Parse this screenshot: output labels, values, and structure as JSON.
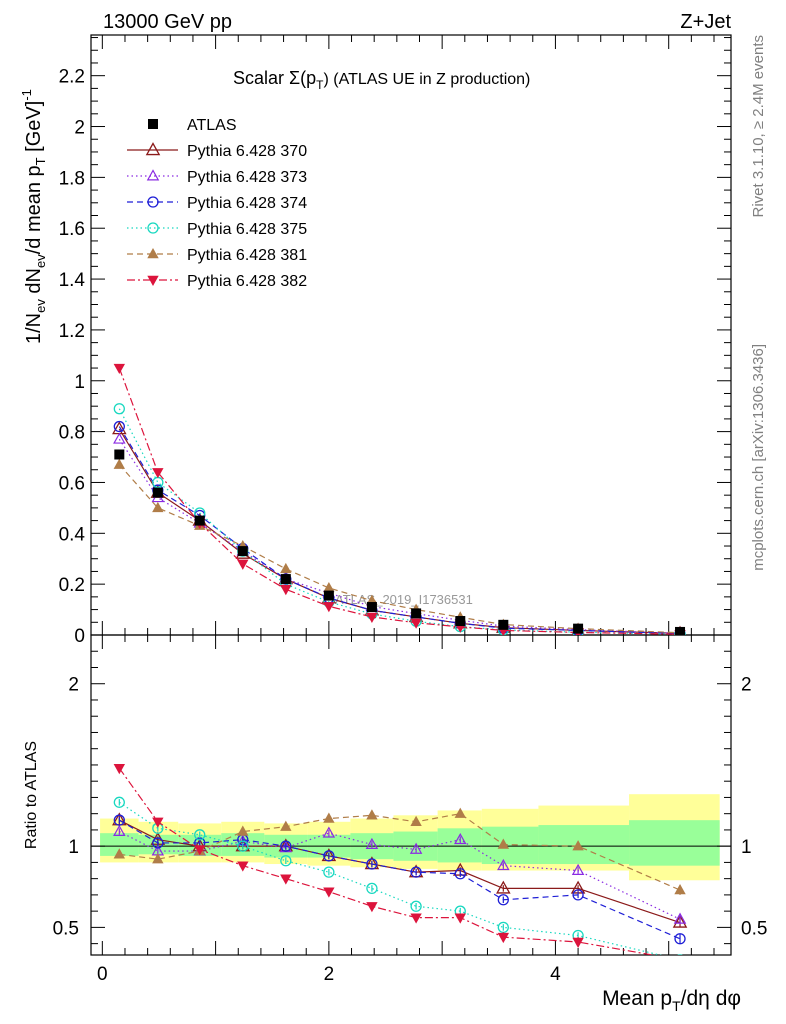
{
  "header": {
    "left": "13000 GeV pp",
    "right": "Z+Jet"
  },
  "side_labels": {
    "upper": "Rivet 3.1.10, ≥ 2.4M events",
    "lower": "mcplots.cern.ch [arXiv:1306.3436]"
  },
  "watermark": "ATLAS_2019_I1736531",
  "title": {
    "prefix": "Scalar Σ(p",
    "sub": "T",
    "suffix": ") (ATLAS UE in Z production)"
  },
  "main_ylabel": "1/N_ev dN_ev/d mean p_T [GeV]^-1",
  "ratio_ylabel": "Ratio to ATLAS",
  "xlabel": "Mean p_T/dη dφ",
  "legend": [
    {
      "label": "ATLAS",
      "color": "#000000",
      "marker": "square-filled",
      "dash": "none"
    },
    {
      "label": "Pythia 6.428 370",
      "color": "#8b1a1a",
      "marker": "triangle-open",
      "dash": "solid"
    },
    {
      "label": "Pythia 6.428 373",
      "color": "#8a2be2",
      "marker": "triangle-open-small",
      "dash": "dotted"
    },
    {
      "label": "Pythia 6.428 374",
      "color": "#1f1fd6",
      "marker": "circle-open",
      "dash": "dashed"
    },
    {
      "label": "Pythia 6.428 375",
      "color": "#18d8c0",
      "marker": "circle-open",
      "dash": "dotted"
    },
    {
      "label": "Pythia 6.428 381",
      "color": "#b07d48",
      "marker": "triangle-filled",
      "dash": "dashed"
    },
    {
      "label": "Pythia 6.428 382",
      "color": "#dc143c",
      "marker": "triangle-down-filled",
      "dash": "dashdot"
    }
  ],
  "chart_data": {
    "type": "line",
    "title": "Scalar Σ(p_T) (ATLAS UE in Z production)",
    "xlabel": "Mean p_T/dη dφ",
    "ylabel": "1/N_ev dN_ev/d mean p_T [GeV]^-1",
    "xlim": [
      -0.1,
      5.55
    ],
    "ylim": [
      0,
      2.36
    ],
    "ratio_ylim": [
      0.33,
      2.3
    ],
    "main_yticks": [
      0,
      0.2,
      0.4,
      0.6,
      0.8,
      1,
      1.2,
      1.4,
      1.6,
      1.8,
      2,
      2.2
    ],
    "main_ytick_labels": [
      "0",
      "0.2",
      "0.4",
      "0.6",
      "0.8",
      "1",
      "1.2",
      "1.4",
      "1.6",
      "1.8",
      "2",
      "2.2"
    ],
    "ratio_yticks": [
      0.5,
      1,
      2
    ],
    "ratio_ytick_labels": [
      "0.5",
      "1",
      "2"
    ],
    "xticks": [
      0,
      2,
      4
    ],
    "xtick_labels": [
      "0",
      "2",
      "4"
    ],
    "x": [
      0.15,
      0.49,
      0.86,
      1.24,
      1.62,
      2.0,
      2.38,
      2.77,
      3.16,
      3.54,
      4.2,
      5.1
    ],
    "atlas": [
      0.71,
      0.56,
      0.45,
      0.33,
      0.22,
      0.155,
      0.11,
      0.085,
      0.055,
      0.04,
      0.025,
      0.012
    ],
    "bins": [
      [
        -0.02,
        0.32
      ],
      [
        0.32,
        0.67
      ],
      [
        0.67,
        1.05
      ],
      [
        1.05,
        1.43
      ],
      [
        1.43,
        1.81
      ],
      [
        1.81,
        2.19
      ],
      [
        2.19,
        2.57
      ],
      [
        2.57,
        2.96
      ],
      [
        2.96,
        3.35
      ],
      [
        3.35,
        3.85
      ],
      [
        3.85,
        4.65
      ],
      [
        4.65,
        5.45
      ]
    ],
    "band_green": [
      [
        0.94,
        1.08
      ],
      [
        0.95,
        1.07
      ],
      [
        0.94,
        1.07
      ],
      [
        0.94,
        1.08
      ],
      [
        0.93,
        1.07
      ],
      [
        0.93,
        1.07
      ],
      [
        0.92,
        1.08
      ],
      [
        0.91,
        1.09
      ],
      [
        0.9,
        1.11
      ],
      [
        0.89,
        1.12
      ],
      [
        0.89,
        1.13
      ],
      [
        0.88,
        1.16
      ]
    ],
    "band_yellow": [
      [
        0.9,
        1.17
      ],
      [
        0.9,
        1.15
      ],
      [
        0.9,
        1.14
      ],
      [
        0.9,
        1.15
      ],
      [
        0.89,
        1.14
      ],
      [
        0.88,
        1.15
      ],
      [
        0.87,
        1.17
      ],
      [
        0.86,
        1.19
      ],
      [
        0.85,
        1.22
      ],
      [
        0.85,
        1.23
      ],
      [
        0.85,
        1.25
      ],
      [
        0.79,
        1.32
      ]
    ],
    "series": [
      {
        "name": "Pythia 6.428 370",
        "values": [
          0.81,
          0.56,
          0.45,
          0.32,
          0.22,
          0.145,
          0.097,
          0.071,
          0.046,
          0.029,
          0.018,
          0.0063
        ],
        "ratio": [
          1.16,
          1.04,
          1.0,
          1.0,
          1.0,
          0.94,
          0.89,
          0.84,
          0.85,
          0.74,
          0.74,
          0.53
        ],
        "ratio_err": [
          0.03,
          0.02,
          0.02,
          0.02,
          0.02,
          0.02,
          0.02,
          0.02,
          0.02,
          0.02,
          0.02,
          0.03
        ]
      },
      {
        "name": "Pythia 6.428 373",
        "values": [
          0.77,
          0.54,
          0.44,
          0.33,
          0.22,
          0.165,
          0.112,
          0.084,
          0.058,
          0.035,
          0.021,
          0.0066
        ],
        "ratio": [
          1.09,
          0.97,
          0.97,
          1.03,
          0.99,
          1.08,
          1.01,
          0.98,
          1.04,
          0.88,
          0.85,
          0.55
        ],
        "ratio_err": [
          0.02,
          0.02,
          0.02,
          0.02,
          0.02,
          0.02,
          0.02,
          0.02,
          0.02,
          0.02,
          0.02,
          0.03
        ]
      },
      {
        "name": "Pythia 6.428 374",
        "values": [
          0.82,
          0.57,
          0.47,
          0.34,
          0.22,
          0.146,
          0.097,
          0.071,
          0.046,
          0.027,
          0.018,
          0.0052
        ],
        "ratio": [
          1.16,
          1.02,
          1.02,
          1.04,
          1.0,
          0.94,
          0.89,
          0.84,
          0.83,
          0.67,
          0.7,
          0.43
        ],
        "ratio_err": [
          0.02,
          0.02,
          0.02,
          0.02,
          0.02,
          0.02,
          0.02,
          0.02,
          0.02,
          0.02,
          0.02,
          0.03
        ]
      },
      {
        "name": "Pythia 6.428 375",
        "values": [
          0.89,
          0.6,
          0.48,
          0.33,
          0.2,
          0.13,
          0.083,
          0.054,
          0.033,
          0.02,
          0.011,
          0.003
        ],
        "ratio": [
          1.27,
          1.11,
          1.07,
          1.0,
          0.91,
          0.84,
          0.74,
          0.63,
          0.6,
          0.5,
          0.45,
          0.3
        ],
        "ratio_err": [
          0.02,
          0.02,
          0.02,
          0.02,
          0.02,
          0.02,
          0.02,
          0.02,
          0.02,
          0.02,
          0.02,
          0.02
        ]
      },
      {
        "name": "Pythia 6.428 381",
        "values": [
          0.67,
          0.5,
          0.43,
          0.35,
          0.26,
          0.185,
          0.135,
          0.1,
          0.07,
          0.041,
          0.025,
          0.009
        ],
        "ratio": [
          0.95,
          0.92,
          0.97,
          1.09,
          1.12,
          1.17,
          1.19,
          1.15,
          1.2,
          1.01,
          1.0,
          0.73
        ],
        "ratio_err": [
          0.02,
          0.02,
          0.02,
          0.02,
          0.02,
          0.02,
          0.02,
          0.02,
          0.02,
          0.02,
          0.02,
          0.03
        ]
      },
      {
        "name": "Pythia 6.428 382",
        "values": [
          1.05,
          0.64,
          0.44,
          0.28,
          0.18,
          0.113,
          0.071,
          0.048,
          0.032,
          0.018,
          0.01,
          0.003
        ],
        "ratio": [
          1.48,
          1.15,
          0.98,
          0.88,
          0.8,
          0.72,
          0.63,
          0.56,
          0.56,
          0.44,
          0.41,
          0.3
        ],
        "ratio_err": [
          0.02,
          0.02,
          0.02,
          0.02,
          0.02,
          0.02,
          0.02,
          0.02,
          0.02,
          0.03,
          0.03,
          0.03
        ]
      }
    ]
  }
}
